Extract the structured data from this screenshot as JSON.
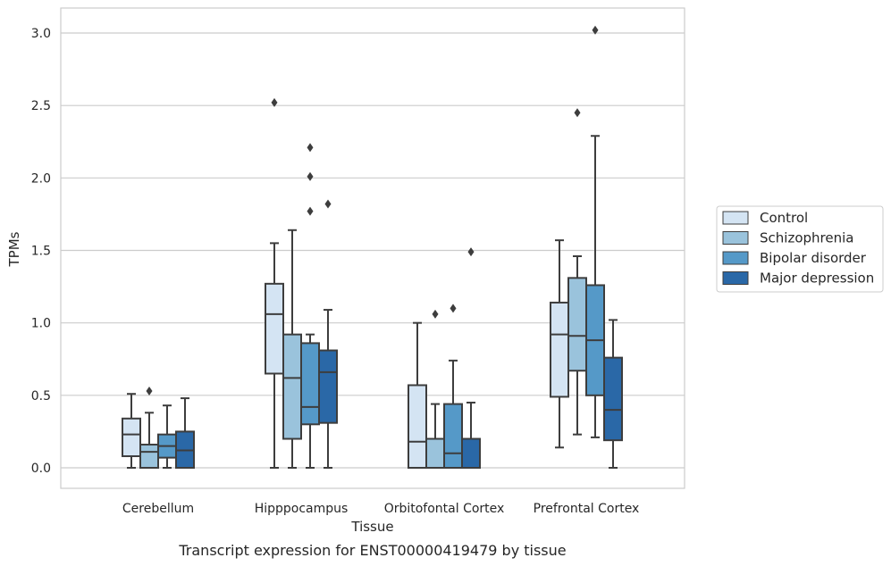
{
  "chart_data": {
    "type": "box",
    "title": "",
    "caption": "Transcript expression for ENST00000419479 by tissue",
    "xlabel": "Tissue",
    "ylabel": "TPMs",
    "ylim": [
      -0.15,
      3.18
    ],
    "yticks": [
      0.0,
      0.5,
      1.0,
      1.5,
      2.0,
      2.5,
      3.0
    ],
    "ytick_labels": [
      "0.0",
      "0.5",
      "1.0",
      "1.5",
      "2.0",
      "2.5",
      "3.0"
    ],
    "grid": "horizontal",
    "legend_position": "right",
    "categories": [
      "Cerebellum",
      "Hipppocampus",
      "Orbitofontal Cortex",
      "Prefrontal Cortex"
    ],
    "series": [
      {
        "name": "Control",
        "color": "#d4e4f3",
        "boxes": [
          {
            "whislo": 0.0,
            "q1": 0.08,
            "med": 0.23,
            "q3": 0.34,
            "whishi": 0.51,
            "fliers": []
          },
          {
            "whislo": 0.0,
            "q1": 0.65,
            "med": 1.06,
            "q3": 1.27,
            "whishi": 1.55,
            "fliers": [
              2.52
            ]
          },
          {
            "whislo": 0.0,
            "q1": 0.0,
            "med": 0.18,
            "q3": 0.57,
            "whishi": 1.0,
            "fliers": []
          },
          {
            "whislo": 0.14,
            "q1": 0.49,
            "med": 0.92,
            "q3": 1.14,
            "whishi": 1.57,
            "fliers": []
          }
        ]
      },
      {
        "name": "Schizophrenia",
        "color": "#9ac3dc",
        "boxes": [
          {
            "whislo": 0.0,
            "q1": 0.0,
            "med": 0.11,
            "q3": 0.16,
            "whishi": 0.38,
            "fliers": [
              0.53
            ]
          },
          {
            "whislo": 0.0,
            "q1": 0.2,
            "med": 0.62,
            "q3": 0.92,
            "whishi": 1.64,
            "fliers": []
          },
          {
            "whislo": 0.0,
            "q1": 0.0,
            "med": 0.0,
            "q3": 0.2,
            "whishi": 0.44,
            "fliers": [
              1.06
            ]
          },
          {
            "whislo": 0.23,
            "q1": 0.67,
            "med": 0.91,
            "q3": 1.31,
            "whishi": 1.46,
            "fliers": [
              2.45
            ]
          }
        ]
      },
      {
        "name": "Bipolar disorder",
        "color": "#5599c8",
        "boxes": [
          {
            "whislo": 0.0,
            "q1": 0.07,
            "med": 0.15,
            "q3": 0.23,
            "whishi": 0.43,
            "fliers": []
          },
          {
            "whislo": 0.0,
            "q1": 0.3,
            "med": 0.42,
            "q3": 0.86,
            "whishi": 0.92,
            "fliers": [
              1.77,
              2.01,
              2.21
            ]
          },
          {
            "whislo": 0.0,
            "q1": 0.0,
            "med": 0.1,
            "q3": 0.44,
            "whishi": 0.74,
            "fliers": [
              1.1
            ]
          },
          {
            "whislo": 0.21,
            "q1": 0.5,
            "med": 0.88,
            "q3": 1.26,
            "whishi": 2.29,
            "fliers": [
              3.02
            ]
          }
        ]
      },
      {
        "name": "Major depression",
        "color": "#2a68a7",
        "boxes": [
          {
            "whislo": 0.0,
            "q1": 0.0,
            "med": 0.12,
            "q3": 0.25,
            "whishi": 0.48,
            "fliers": []
          },
          {
            "whislo": 0.0,
            "q1": 0.31,
            "med": 0.66,
            "q3": 0.81,
            "whishi": 1.09,
            "fliers": [
              1.82
            ]
          },
          {
            "whislo": 0.0,
            "q1": 0.0,
            "med": 0.0,
            "q3": 0.2,
            "whishi": 0.45,
            "fliers": [
              1.49
            ]
          },
          {
            "whislo": 0.0,
            "q1": 0.19,
            "med": 0.4,
            "q3": 0.76,
            "whishi": 1.02,
            "fliers": []
          }
        ]
      }
    ]
  }
}
